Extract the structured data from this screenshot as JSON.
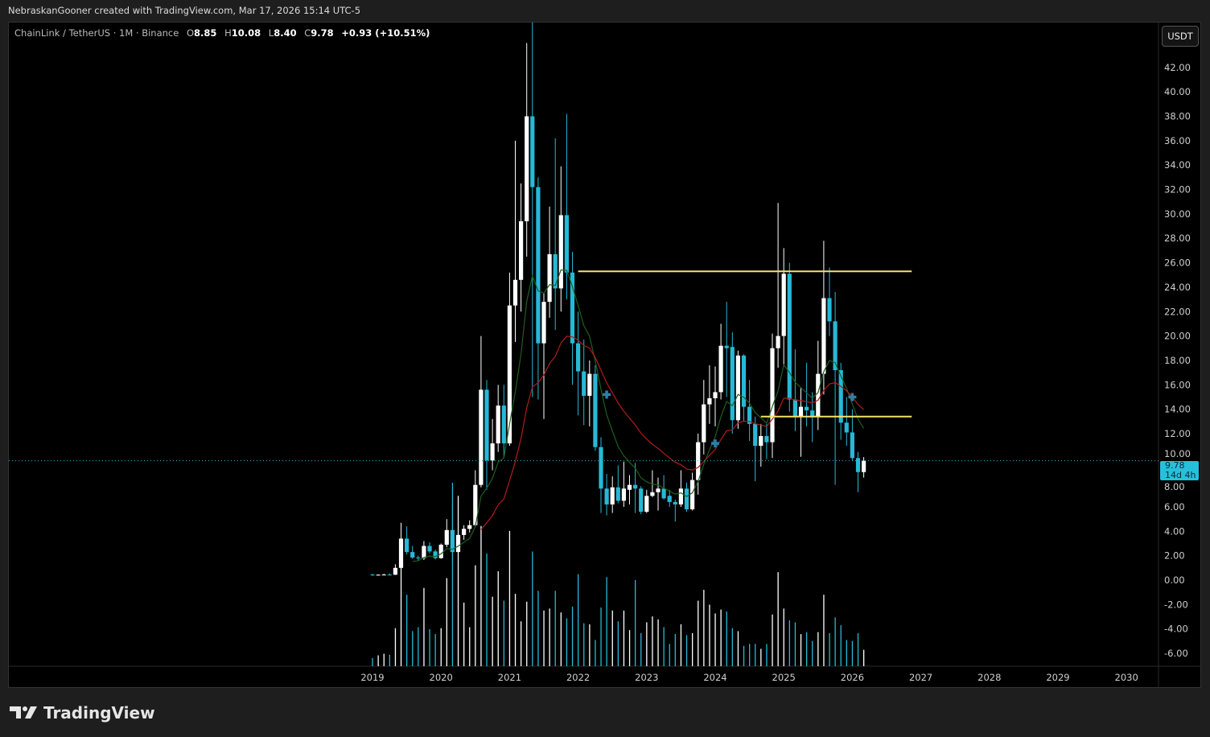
{
  "header": {
    "attribution": "NebraskanGooner created with TradingView.com, Mar 17, 2026 15:14 UTC-5"
  },
  "legend": {
    "symbol": "ChainLink / TetherUS · 1M · Binance",
    "open_label": "O",
    "open": "8.85",
    "high_label": "H",
    "high": "10.08",
    "low_label": "L",
    "low": "8.40",
    "close_label": "C",
    "close": "9.78",
    "change": "+0.93 (+10.51%)"
  },
  "currency_button": "USDT",
  "last_price": {
    "price": "9.78",
    "countdown": "14d 4h"
  },
  "logo_text": "TradingView",
  "colors": {
    "up": "#ffffff",
    "down": "#26b9d6",
    "ema_fast": "#1e5e1e",
    "ema_slow": "#b01c1c",
    "level": "#f5e26a",
    "marker": "#2f7fa6",
    "background": "#000000"
  },
  "chart_data": {
    "type": "candlestick",
    "title": "ChainLink / TetherUS · 1M · Binance",
    "start": "2019-01",
    "interval": "1M",
    "ylim": [
      -7,
      46
    ],
    "y_ticks": [
      "42.00",
      "40.00",
      "38.00",
      "36.00",
      "34.00",
      "32.00",
      "30.00",
      "28.00",
      "26.00",
      "24.00",
      "22.00",
      "20.00",
      "18.00",
      "16.00",
      "14.00",
      "12.00",
      "10.00",
      "8.00",
      "6.00",
      "4.00",
      "2.00",
      "0.00",
      "-2.00",
      "-4.00",
      "-6.00"
    ],
    "x_ticks": [
      "2019",
      "2020",
      "2021",
      "2022",
      "2023",
      "2024",
      "2025",
      "2026",
      "2027",
      "2028",
      "2029",
      "2030"
    ],
    "ohlc": [
      [
        0.45,
        0.52,
        0.36,
        0.42
      ],
      [
        0.42,
        0.48,
        0.38,
        0.44
      ],
      [
        0.44,
        0.52,
        0.4,
        0.45
      ],
      [
        0.45,
        0.55,
        0.4,
        0.44
      ],
      [
        0.44,
        1.3,
        0.42,
        1.0
      ],
      [
        1.0,
        4.7,
        0.95,
        3.4
      ],
      [
        3.4,
        4.4,
        2.1,
        2.3
      ],
      [
        2.3,
        2.8,
        1.75,
        1.85
      ],
      [
        1.85,
        2.0,
        1.6,
        1.8
      ],
      [
        1.8,
        3.2,
        1.65,
        2.8
      ],
      [
        2.8,
        3.1,
        2.2,
        2.35
      ],
      [
        2.35,
        2.5,
        1.7,
        1.8
      ],
      [
        1.8,
        3.0,
        1.75,
        2.9
      ],
      [
        2.9,
        5.0,
        2.7,
        4.1
      ],
      [
        4.1,
        6.2,
        1.4,
        2.3
      ],
      [
        2.3,
        4.1,
        2.2,
        3.7
      ],
      [
        3.7,
        4.5,
        3.3,
        4.2
      ],
      [
        4.2,
        4.9,
        3.9,
        4.5
      ],
      [
        4.5,
        9.0,
        4.4,
        7.8
      ],
      [
        7.8,
        20.0,
        7.6,
        15.6
      ],
      [
        15.6,
        16.4,
        7.4,
        9.8
      ],
      [
        9.8,
        13.2,
        9.0,
        11.2
      ],
      [
        11.2,
        16.0,
        10.5,
        14.3
      ],
      [
        14.3,
        16.0,
        10.0,
        11.2
      ],
      [
        11.2,
        25.2,
        11.0,
        22.5
      ],
      [
        22.5,
        36.0,
        19.5,
        24.6
      ],
      [
        24.6,
        32.5,
        22.0,
        29.4
      ],
      [
        29.4,
        44.0,
        26.5,
        38.0
      ],
      [
        38.0,
        46.5,
        15.0,
        32.2
      ],
      [
        32.2,
        33.0,
        14.8,
        19.4
      ],
      [
        19.4,
        23.5,
        13.2,
        22.8
      ],
      [
        22.8,
        30.6,
        21.5,
        26.7
      ],
      [
        26.7,
        36.2,
        20.5,
        23.9
      ],
      [
        23.9,
        33.9,
        22.0,
        29.9
      ],
      [
        29.9,
        38.2,
        23.0,
        25.2
      ],
      [
        25.2,
        26.9,
        16.0,
        19.4
      ],
      [
        19.4,
        22.0,
        13.5,
        17.1
      ],
      [
        17.1,
        19.7,
        12.7,
        15.1
      ],
      [
        15.1,
        18.0,
        12.6,
        16.9
      ],
      [
        16.9,
        17.6,
        10.6,
        10.9
      ],
      [
        10.9,
        11.7,
        5.5,
        7.5
      ],
      [
        7.5,
        8.7,
        5.3,
        6.2
      ],
      [
        6.2,
        8.5,
        5.5,
        7.6
      ],
      [
        7.6,
        9.4,
        6.3,
        6.5
      ],
      [
        6.5,
        9.7,
        6.0,
        7.5
      ],
      [
        7.4,
        8.6,
        6.2,
        7.8
      ],
      [
        7.8,
        9.6,
        5.5,
        7.5
      ],
      [
        7.5,
        7.7,
        5.4,
        5.6
      ],
      [
        5.6,
        7.4,
        5.5,
        6.9
      ],
      [
        6.9,
        9.0,
        6.8,
        7.2
      ],
      [
        7.2,
        8.4,
        5.7,
        7.5
      ],
      [
        7.5,
        8.6,
        6.6,
        6.7
      ],
      [
        6.9,
        7.4,
        6.0,
        6.4
      ],
      [
        6.4,
        6.6,
        4.8,
        6.2
      ],
      [
        6.2,
        9.0,
        6.0,
        7.5
      ],
      [
        7.5,
        8.0,
        5.6,
        5.8
      ],
      [
        5.8,
        8.8,
        5.7,
        8.2
      ],
      [
        8.2,
        12.0,
        7.0,
        11.3
      ],
      [
        11.3,
        16.4,
        10.3,
        14.4
      ],
      [
        14.4,
        17.6,
        12.8,
        14.9
      ],
      [
        14.9,
        17.5,
        12.6,
        15.4
      ],
      [
        15.4,
        21.0,
        14.8,
        19.2
      ],
      [
        19.2,
        22.8,
        15.0,
        19.0
      ],
      [
        19.1,
        20.3,
        12.0,
        13.1
      ],
      [
        13.1,
        18.8,
        12.4,
        18.4
      ],
      [
        18.4,
        18.5,
        13.0,
        14.2
      ],
      [
        14.2,
        16.4,
        11.4,
        12.8
      ],
      [
        12.8,
        13.4,
        8.1,
        11.0
      ],
      [
        11.0,
        12.8,
        9.3,
        11.8
      ],
      [
        11.8,
        12.8,
        9.9,
        11.3
      ],
      [
        11.3,
        20.2,
        10.0,
        19.0
      ],
      [
        19.0,
        30.9,
        17.4,
        20.0
      ],
      [
        20.0,
        27.2,
        17.5,
        25.1
      ],
      [
        25.1,
        26.0,
        13.8,
        14.8
      ],
      [
        14.8,
        18.9,
        12.2,
        13.4
      ],
      [
        13.4,
        15.8,
        10.1,
        14.2
      ],
      [
        14.2,
        17.8,
        12.6,
        13.9
      ],
      [
        13.9,
        15.4,
        11.3,
        13.4
      ],
      [
        13.4,
        19.6,
        12.3,
        16.9
      ],
      [
        16.9,
        27.8,
        15.2,
        23.1
      ],
      [
        23.1,
        25.6,
        20.0,
        21.2
      ],
      [
        21.2,
        23.6,
        7.8,
        17.2
      ],
      [
        17.2,
        17.8,
        11.5,
        12.9
      ],
      [
        12.9,
        15.0,
        11.0,
        12.1
      ],
      [
        12.1,
        14.0,
        9.8,
        10.0
      ],
      [
        10.0,
        10.5,
        7.2,
        8.85
      ],
      [
        8.85,
        10.08,
        8.4,
        9.78
      ]
    ],
    "volume": [
      25,
      33,
      38,
      35,
      116,
      311,
      218,
      107,
      119,
      239,
      113,
      98,
      116,
      269,
      560,
      520,
      194,
      119,
      308,
      428,
      344,
      212,
      290,
      200,
      413,
      221,
      137,
      197,
      350,
      230,
      170,
      176,
      230,
      164,
      146,
      182,
      281,
      131,
      128,
      80,
      179,
      272,
      170,
      137,
      170,
      110,
      263,
      101,
      134,
      152,
      143,
      119,
      68,
      98,
      128,
      95,
      101,
      200,
      233,
      188,
      161,
      173,
      167,
      116,
      107,
      62,
      68,
      68,
      53,
      68,
      158,
      287,
      176,
      140,
      134,
      98,
      104,
      77,
      104,
      218,
      101,
      149,
      125,
      80,
      77,
      101,
      50
    ],
    "moving_averages": [
      {
        "type": "ema",
        "period": 8,
        "color_key": "ema_fast"
      },
      {
        "type": "ema",
        "period": 20,
        "color_key": "ema_slow"
      }
    ],
    "horizontal_levels": [
      {
        "price": 25.3,
        "from_month_index": 36,
        "to_month_index": 94.4
      },
      {
        "price": 13.4,
        "from_month_index": 68,
        "to_month_index": 94.4
      }
    ],
    "markers": [
      {
        "month_index": 41,
        "price": 15.2
      },
      {
        "month_index": 60,
        "price": 11.2
      },
      {
        "month_index": 84,
        "price": 15.0
      }
    ],
    "current_price": 9.78
  }
}
